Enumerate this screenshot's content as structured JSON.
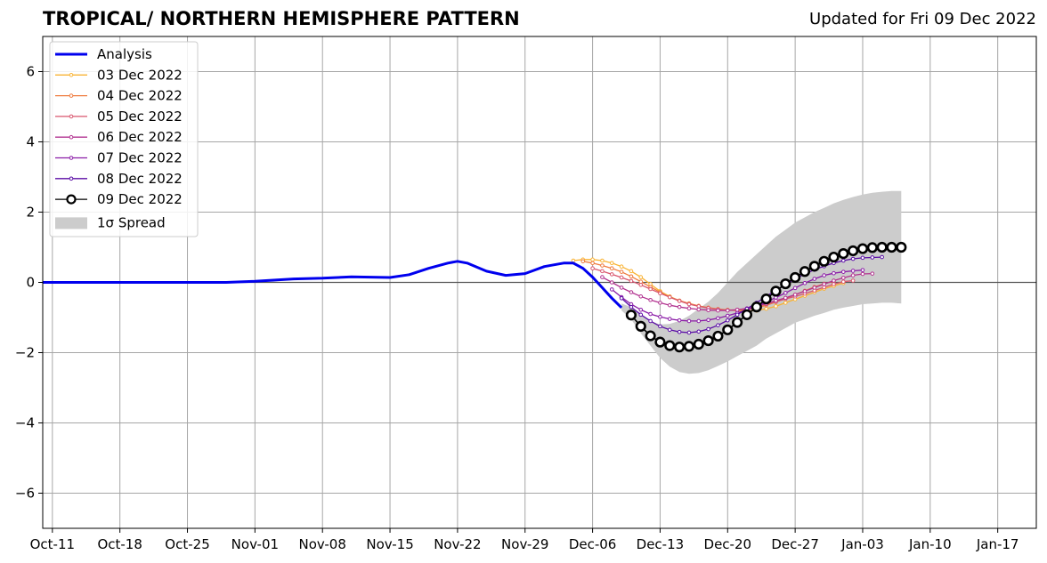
{
  "header": {
    "title": "TROPICAL/ NORTHERN HEMISPHERE PATTERN",
    "updated": "Updated for Fri 09 Dec 2022"
  },
  "chart_data": {
    "type": "line",
    "title": "TROPICAL/ NORTHERN HEMISPHERE PATTERN",
    "subtitle": "Updated for Fri 09 Dec 2022",
    "xlabel": "",
    "ylabel": "",
    "xlim": [
      "2022-10-10",
      "2023-01-21"
    ],
    "ylim": [
      -7,
      7
    ],
    "grid": true,
    "legend_position": "top-left",
    "x_ticks": [
      "Oct-11",
      "Oct-18",
      "Oct-25",
      "Nov-01",
      "Nov-08",
      "Nov-15",
      "Nov-22",
      "Nov-29",
      "Dec-06",
      "Dec-13",
      "Dec-20",
      "Dec-27",
      "Jan-03",
      "Jan-10",
      "Jan-17"
    ],
    "x_tick_dates": [
      "2022-10-11",
      "2022-10-18",
      "2022-10-25",
      "2022-11-01",
      "2022-11-08",
      "2022-11-15",
      "2022-11-22",
      "2022-11-29",
      "2022-12-06",
      "2022-12-13",
      "2022-12-20",
      "2022-12-27",
      "2023-01-03",
      "2023-01-10",
      "2023-01-17"
    ],
    "y_ticks": [
      {
        "value": 6,
        "label": "6"
      },
      {
        "value": 4,
        "label": "4"
      },
      {
        "value": 2,
        "label": "2"
      },
      {
        "value": 0,
        "label": "0"
      },
      {
        "value": -2,
        "label": "−2"
      },
      {
        "value": -4,
        "label": "−4"
      },
      {
        "value": -6,
        "label": "−6"
      }
    ],
    "analysis": {
      "name": "Analysis",
      "color": "#0000ee",
      "x": [
        "2022-10-10",
        "2022-10-20",
        "2022-10-29",
        "2022-11-01",
        "2022-11-05",
        "2022-11-08",
        "2022-11-11",
        "2022-11-15",
        "2022-11-17",
        "2022-11-19",
        "2022-11-21",
        "2022-11-22",
        "2022-11-23",
        "2022-11-25",
        "2022-11-27",
        "2022-11-29",
        "2022-12-01",
        "2022-12-03",
        "2022-12-04",
        "2022-12-05",
        "2022-12-06",
        "2022-12-07",
        "2022-12-08",
        "2022-12-09"
      ],
      "y": [
        0,
        0,
        0,
        0.03,
        0.1,
        0.12,
        0.16,
        0.14,
        0.22,
        0.4,
        0.55,
        0.6,
        0.55,
        0.32,
        0.2,
        0.25,
        0.45,
        0.55,
        0.55,
        0.4,
        0.15,
        -0.15,
        -0.45,
        -0.72
      ]
    },
    "series": [
      {
        "name": "03 Dec 2022",
        "color": "#f9b333",
        "start": "2022-12-04",
        "values": [
          0.62,
          0.65,
          0.65,
          0.62,
          0.55,
          0.45,
          0.32,
          0.15,
          -0.05,
          -0.25,
          -0.4,
          -0.52,
          -0.6,
          -0.67,
          -0.72,
          -0.76,
          -0.78,
          -0.8,
          -0.82,
          -0.8,
          -0.75,
          -0.68,
          -0.58,
          -0.48,
          -0.38,
          -0.28,
          -0.18,
          -0.1,
          -0.02
        ]
      },
      {
        "name": "04 Dec 2022",
        "color": "#ef7b3f",
        "start": "2022-12-05",
        "values": [
          0.6,
          0.55,
          0.48,
          0.4,
          0.3,
          0.17,
          0.02,
          -0.13,
          -0.28,
          -0.42,
          -0.52,
          -0.6,
          -0.67,
          -0.72,
          -0.76,
          -0.79,
          -0.8,
          -0.78,
          -0.73,
          -0.65,
          -0.56,
          -0.46,
          -0.35,
          -0.24,
          -0.13,
          -0.04,
          0.03
        ]
      },
      {
        "name": "05 Dec 2022",
        "color": "#d9566e",
        "start": "2022-12-06",
        "values": [
          0.4,
          0.32,
          0.23,
          0.14,
          0.04,
          -0.07,
          -0.19,
          -0.31,
          -0.42,
          -0.53,
          -0.62,
          -0.68,
          -0.73,
          -0.77,
          -0.79,
          -0.78,
          -0.75,
          -0.69,
          -0.62,
          -0.55,
          -0.47,
          -0.4,
          -0.32,
          -0.23,
          -0.14,
          -0.05,
          0.02,
          0.05
        ]
      },
      {
        "name": "06 Dec 2022",
        "color": "#b23390",
        "start": "2022-12-07",
        "values": [
          0.15,
          0.0,
          -0.15,
          -0.28,
          -0.4,
          -0.5,
          -0.58,
          -0.65,
          -0.7,
          -0.74,
          -0.77,
          -0.79,
          -0.8,
          -0.8,
          -0.78,
          -0.74,
          -0.67,
          -0.6,
          -0.52,
          -0.44,
          -0.35,
          -0.25,
          -0.15,
          -0.05,
          0.05,
          0.13,
          0.2,
          0.24,
          0.25
        ]
      },
      {
        "name": "07 Dec 2022",
        "color": "#8b1ca7",
        "start": "2022-12-08",
        "values": [
          -0.2,
          -0.42,
          -0.62,
          -0.78,
          -0.9,
          -0.98,
          -1.04,
          -1.08,
          -1.1,
          -1.1,
          -1.07,
          -1.02,
          -0.95,
          -0.87,
          -0.78,
          -0.68,
          -0.56,
          -0.43,
          -0.3,
          -0.16,
          -0.02,
          0.1,
          0.2,
          0.26,
          0.3,
          0.33,
          0.35
        ]
      },
      {
        "name": "08 Dec 2022",
        "color": "#5b0ea6",
        "start": "2022-12-09",
        "values": [
          -0.45,
          -0.7,
          -0.92,
          -1.1,
          -1.25,
          -1.35,
          -1.41,
          -1.43,
          -1.4,
          -1.33,
          -1.22,
          -1.08,
          -0.92,
          -0.75,
          -0.58,
          -0.4,
          -0.22,
          -0.06,
          0.1,
          0.24,
          0.36,
          0.46,
          0.55,
          0.62,
          0.67,
          0.7,
          0.71,
          0.72
        ]
      },
      {
        "name": "09 Dec 2022",
        "color": "#000000",
        "start": "2022-12-10",
        "marker": "open-circle",
        "values": [
          -0.93,
          -1.25,
          -1.52,
          -1.7,
          -1.8,
          -1.84,
          -1.82,
          -1.76,
          -1.66,
          -1.53,
          -1.35,
          -1.14,
          -0.92,
          -0.7,
          -0.47,
          -0.25,
          -0.04,
          0.14,
          0.31,
          0.46,
          0.6,
          0.72,
          0.82,
          0.9,
          0.96,
          0.99,
          1.0,
          1.0,
          1.0
        ]
      }
    ],
    "spread": {
      "name": "1σ Spread",
      "color": "#cccccc",
      "x": [
        "2022-12-09",
        "2022-12-10",
        "2022-12-11",
        "2022-12-12",
        "2022-12-13",
        "2022-12-14",
        "2022-12-15",
        "2022-12-16",
        "2022-12-17",
        "2022-12-18",
        "2022-12-19",
        "2022-12-20",
        "2022-12-21",
        "2022-12-22",
        "2022-12-23",
        "2022-12-24",
        "2022-12-25",
        "2022-12-26",
        "2022-12-27",
        "2022-12-28",
        "2022-12-29",
        "2022-12-30",
        "2022-12-31",
        "2023-01-01",
        "2023-01-02",
        "2023-01-03",
        "2023-01-04",
        "2023-01-05",
        "2023-01-06",
        "2023-01-07"
      ],
      "upper": [
        -0.6,
        -0.7,
        -0.95,
        -1.1,
        -1.2,
        -1.18,
        -1.1,
        -0.95,
        -0.75,
        -0.55,
        -0.3,
        0.0,
        0.3,
        0.55,
        0.8,
        1.05,
        1.3,
        1.5,
        1.7,
        1.85,
        2.0,
        2.12,
        2.25,
        2.35,
        2.43,
        2.5,
        2.55,
        2.58,
        2.6,
        2.6
      ],
      "lower": [
        -0.8,
        -1.05,
        -1.45,
        -1.8,
        -2.15,
        -2.4,
        -2.55,
        -2.6,
        -2.58,
        -2.5,
        -2.38,
        -2.25,
        -2.1,
        -1.95,
        -1.8,
        -1.6,
        -1.45,
        -1.3,
        -1.15,
        -1.05,
        -0.95,
        -0.87,
        -0.78,
        -0.72,
        -0.67,
        -0.62,
        -0.6,
        -0.58,
        -0.58,
        -0.6
      ]
    }
  }
}
